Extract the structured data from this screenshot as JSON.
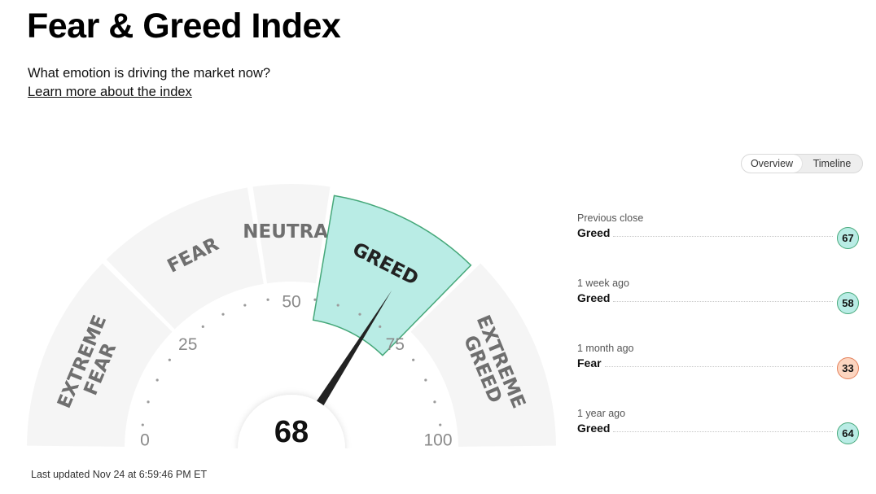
{
  "header": {
    "title": "Fear & Greed Index",
    "subtitle": "What emotion is driving the market now?",
    "learn_more": "Learn more about the index"
  },
  "toggle": {
    "options": [
      {
        "label": "Overview",
        "active": true
      },
      {
        "label": "Timeline",
        "active": false
      }
    ]
  },
  "gauge": {
    "score": 68,
    "score_label": "68",
    "ticks": [
      "0",
      "25",
      "50",
      "75",
      "100"
    ],
    "segments": [
      {
        "label": "EXTREME FEAR",
        "lines": [
          "EXTREME",
          "FEAR"
        ],
        "active": false
      },
      {
        "label": "FEAR",
        "lines": [
          "FEAR"
        ],
        "active": false
      },
      {
        "label": "NEUTRAL",
        "lines": [
          "NEUTRAL"
        ],
        "active": false
      },
      {
        "label": "GREED",
        "lines": [
          "GREED"
        ],
        "active": true
      },
      {
        "label": "EXTREME GREED",
        "lines": [
          "EXTREME",
          "GREED"
        ],
        "active": false
      }
    ],
    "colors": {
      "segment": "#f5f5f5",
      "active_fill": "#b9ece5",
      "active_stroke": "#46a87a",
      "label": "#6f6f6f",
      "active_label": "#222222",
      "needle": "#222222"
    }
  },
  "history": [
    {
      "when": "Previous close",
      "rating": "Greed",
      "score": "67",
      "bg": "#b9ece5",
      "border": "#46a87a"
    },
    {
      "when": "1 week ago",
      "rating": "Greed",
      "score": "58",
      "bg": "#b9ece5",
      "border": "#46a87a"
    },
    {
      "when": "1 month ago",
      "rating": "Fear",
      "score": "33",
      "bg": "#fcd5c0",
      "border": "#e4805a"
    },
    {
      "when": "1 year ago",
      "rating": "Greed",
      "score": "64",
      "bg": "#b9ece5",
      "border": "#46a87a"
    }
  ],
  "footer": {
    "last_updated": "Last updated Nov 24 at 6:59:46 PM ET"
  }
}
